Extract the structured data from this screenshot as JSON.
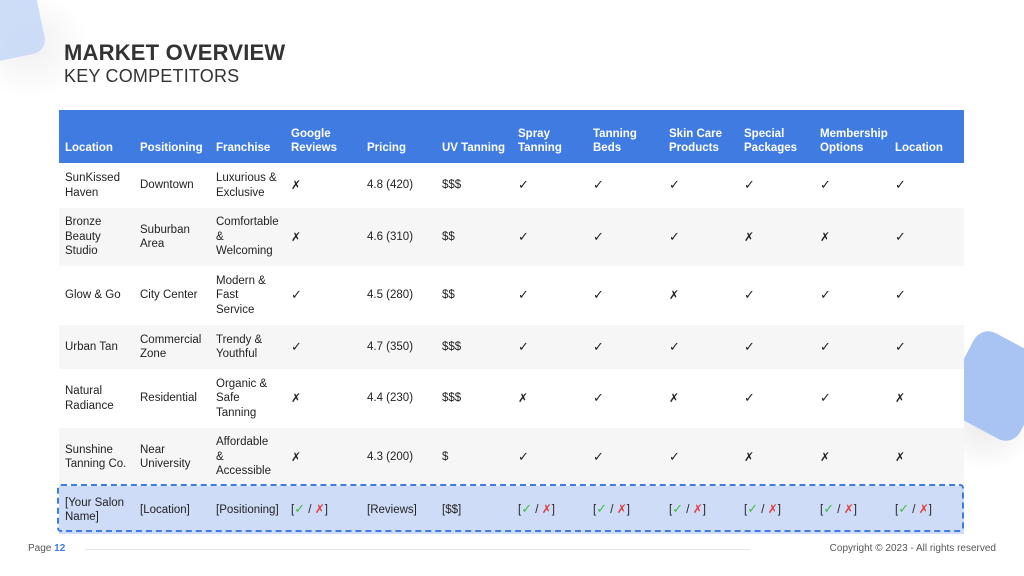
{
  "header": {
    "title": "MARKET OVERVIEW",
    "subtitle": "KEY COMPETITORS"
  },
  "table": {
    "columns": [
      "Location",
      "Positioning",
      "Franchise",
      "Google Reviews",
      "Pricing",
      "UV Tanning",
      "Spray Tanning",
      "Tanning Beds",
      "Skin Care Products",
      "Special Packages",
      "Membership Options",
      "Location"
    ],
    "rows": [
      {
        "name": "SunKissed Haven",
        "positioning": "Downtown",
        "franchise": "Luxurious & Exclusive",
        "google": "✗",
        "pricing": "4.8 (420)",
        "uv": "$$$",
        "spray": "✓",
        "beds": "✓",
        "skincare": "✓",
        "packages": "✓",
        "membership": "✓",
        "location": "✓"
      },
      {
        "name": "Bronze Beauty Studio",
        "positioning": "Suburban Area",
        "franchise": "Comfortable & Welcoming",
        "google": "✗",
        "pricing": "4.6 (310)",
        "uv": "$$",
        "spray": "✓",
        "beds": "✓",
        "skincare": "✓",
        "packages": "✗",
        "membership": "✗",
        "location": "✓"
      },
      {
        "name": "Glow & Go",
        "positioning": "City Center",
        "franchise": "Modern & Fast Service",
        "google": "✓",
        "pricing": "4.5 (280)",
        "uv": "$$",
        "spray": "✓",
        "beds": "✓",
        "skincare": "✗",
        "packages": "✓",
        "membership": "✓",
        "location": "✓"
      },
      {
        "name": "Urban Tan",
        "positioning": "Commercial Zone",
        "franchise": "Trendy & Youthful",
        "google": "✓",
        "pricing": "4.7 (350)",
        "uv": "$$$",
        "spray": "✓",
        "beds": "✓",
        "skincare": "✓",
        "packages": "✓",
        "membership": "✓",
        "location": "✓"
      },
      {
        "name": "Natural Radiance",
        "positioning": "Residential",
        "franchise": "Organic & Safe Tanning",
        "google": "✗",
        "pricing": "4.4 (230)",
        "uv": "$$$",
        "spray": "✗",
        "beds": "✓",
        "skincare": "✗",
        "packages": "✓",
        "membership": "✓",
        "location": "✗"
      },
      {
        "name": "Sunshine Tanning Co.",
        "positioning": "Near University",
        "franchise": "Affordable & Accessible",
        "google": "✗",
        "pricing": "4.3 (200)",
        "uv": "$",
        "spray": "✓",
        "beds": "✓",
        "skincare": "✓",
        "packages": "✗",
        "membership": "✗",
        "location": "✗"
      }
    ],
    "own_row": {
      "name": "[Your Salon Name]",
      "positioning": "[Location]",
      "franchise": "[Positioning]",
      "pricing": "[Reviews]",
      "uv": "[$$]",
      "check_open": "[",
      "check": "✓",
      "slash": " / ",
      "cross": "✗",
      "check_close": "]"
    }
  },
  "footer": {
    "page_label": "Page",
    "page_number": "12",
    "copyright": "Copyright © 2023 - All rights reserved"
  },
  "colors": {
    "header_blue": "#3f7be0",
    "check_green": "#3fbf3f",
    "cross_red": "#e03b3b",
    "highlight_row": "#cfdcf7"
  }
}
